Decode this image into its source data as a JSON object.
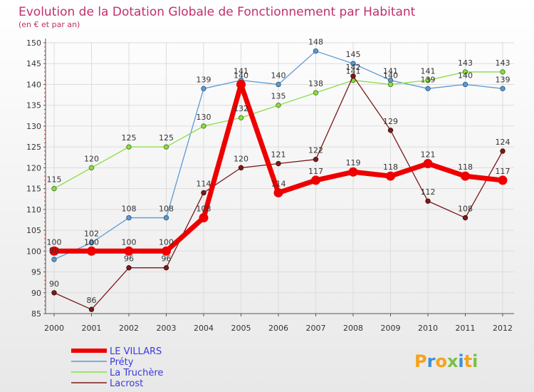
{
  "chart_data": {
    "type": "line",
    "title": "Evolution de la Dotation Globale de Fonctionnement par Habitant",
    "subtitle": "(en € et par an)",
    "categories": [
      "2000",
      "2001",
      "2002",
      "2003",
      "2004",
      "2005",
      "2006",
      "2007",
      "2008",
      "2009",
      "2010",
      "2011",
      "2012"
    ],
    "ylim": [
      85,
      150
    ],
    "yticks": [
      85,
      90,
      95,
      100,
      105,
      110,
      115,
      120,
      125,
      130,
      135,
      140,
      145,
      150
    ],
    "grid": true,
    "legend_position": "bottom-left",
    "series": [
      {
        "name": "Préty",
        "color": "#5b9bd5",
        "values": [
          98,
          102,
          108,
          108,
          139,
          141,
          140,
          148,
          145,
          141,
          139,
          140,
          139
        ]
      },
      {
        "name": "La Truchère",
        "color": "#88dd44",
        "values": [
          115,
          120,
          125,
          125,
          130,
          132,
          135,
          138,
          141,
          140,
          141,
          143,
          143
        ]
      },
      {
        "name": "Lacrost",
        "color": "#7a1a1a",
        "values": [
          90,
          86,
          96,
          96,
          114,
          120,
          121,
          122,
          142,
          129,
          112,
          108,
          124
        ]
      },
      {
        "name": "LE VILLARS",
        "color": "#ee0000",
        "values": [
          100,
          100,
          100,
          100,
          108,
          140,
          114,
          117,
          119,
          118,
          121,
          118,
          117
        ]
      }
    ],
    "legend": [
      "LE VILLARS",
      "Préty",
      "La Truchère",
      "Lacrost"
    ]
  },
  "logo_text": "Proxiti"
}
